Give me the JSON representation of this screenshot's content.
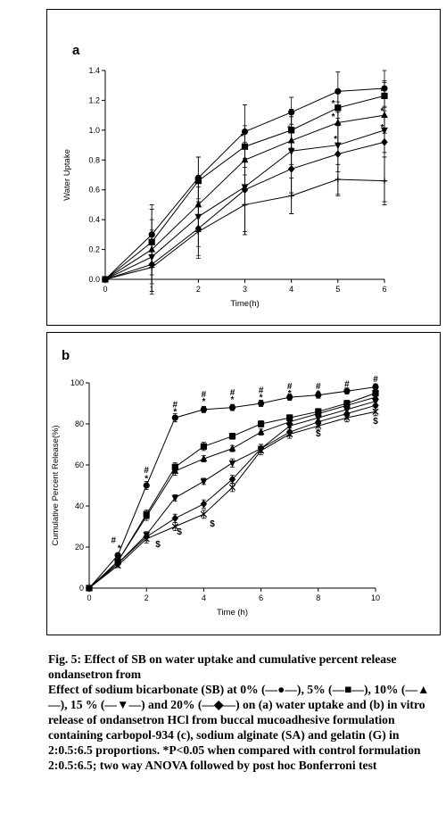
{
  "chart_data": [
    {
      "type": "line",
      "panel_label": "a",
      "xlabel": "Time(h)",
      "ylabel": "Water Uptake",
      "xlim": [
        0,
        6
      ],
      "ylim": [
        0,
        1.4
      ],
      "xticks": [
        "0",
        "1",
        "2",
        "3",
        "4",
        "5",
        "6"
      ],
      "yticks": [
        "0.0",
        "0.2",
        "0.4",
        "0.6",
        "0.8",
        "1.0",
        "1.2",
        "1.4"
      ],
      "grid": false,
      "x": [
        0,
        1,
        2,
        3,
        4,
        5,
        6
      ],
      "series": [
        {
          "marker": "circle",
          "values": [
            0,
            0.3,
            0.68,
            0.99,
            1.12,
            1.26,
            1.28
          ],
          "errors": [
            0,
            0.2,
            0.14,
            0.18,
            0.1,
            0.13,
            0.12
          ]
        },
        {
          "marker": "square",
          "values": [
            0,
            0.25,
            0.66,
            0.89,
            1.0,
            1.15,
            1.23
          ],
          "errors": [
            0,
            0.22,
            0.16,
            0.14,
            0.12,
            0.12,
            0.1
          ]
        },
        {
          "marker": "triangle-up",
          "values": [
            0,
            0.2,
            0.5,
            0.8,
            0.93,
            1.05,
            1.1
          ],
          "errors": [
            0,
            0.2,
            0.15,
            0.18,
            0.16,
            0.14,
            0.12
          ]
        },
        {
          "marker": "triangle-down",
          "values": [
            0,
            0.15,
            0.42,
            0.62,
            0.86,
            0.9,
            1.0
          ],
          "errors": [
            0,
            0.18,
            0.2,
            0.3,
            0.28,
            0.18,
            0.15
          ]
        },
        {
          "marker": "diamond",
          "values": [
            0,
            0.1,
            0.34,
            0.6,
            0.74,
            0.84,
            0.92
          ],
          "errors": [
            0,
            0.2,
            0.18,
            0.3,
            0.3,
            0.28,
            0.4
          ]
        },
        {
          "marker": "plus",
          "values": [
            0,
            0.08,
            0.32,
            0.5,
            0.56,
            0.67,
            0.66
          ],
          "errors": [
            0,
            0.16,
            0.18,
            0.2,
            0.12,
            0.1,
            0.16
          ]
        }
      ],
      "annotations": [
        {
          "text": "*",
          "x": 5.95,
          "y": 1.24
        },
        {
          "text": "*",
          "x": 5.95,
          "y": 1.11
        },
        {
          "text": "*",
          "x": 5.95,
          "y": 1.0
        },
        {
          "text": "*",
          "x": 4.9,
          "y": 1.16
        },
        {
          "text": "*",
          "x": 4.9,
          "y": 1.07
        },
        {
          "text": "*",
          "x": 4.95,
          "y": 0.92
        },
        {
          "text": "*",
          "x": 3.95,
          "y": 0.99
        },
        {
          "text": "*",
          "x": 2.95,
          "y": 0.94
        }
      ]
    },
    {
      "type": "line",
      "panel_label": "b",
      "xlabel": "Time (h)",
      "ylabel": "Cumulative Percent Release(%)",
      "xlim": [
        0,
        10
      ],
      "ylim": [
        0,
        100
      ],
      "xticks": [
        "0",
        "2",
        "4",
        "6",
        "8",
        "10"
      ],
      "yticks": [
        "0",
        "20",
        "40",
        "60",
        "80",
        "100"
      ],
      "grid": false,
      "x": [
        0,
        1,
        2,
        3,
        4,
        5,
        6,
        7,
        8,
        9,
        10
      ],
      "series": [
        {
          "marker": "circle",
          "values": [
            0,
            16,
            50,
            83,
            87,
            88,
            90,
            93,
            94,
            96,
            98
          ],
          "errors": [
            0,
            1,
            2,
            2,
            1.5,
            1.5,
            1.5,
            1.5,
            1.5,
            1.5,
            1.5
          ]
        },
        {
          "marker": "square",
          "values": [
            0,
            13,
            36,
            59,
            69,
            74,
            80,
            83,
            86,
            90,
            95
          ],
          "errors": [
            0,
            1,
            2,
            2,
            2,
            1.5,
            1.5,
            1.5,
            1.5,
            1.5,
            1.5
          ]
        },
        {
          "marker": "triangle-up",
          "values": [
            0,
            13,
            35,
            57,
            63,
            68,
            76,
            81,
            85,
            89,
            93
          ],
          "errors": [
            0,
            1,
            2,
            2,
            1.5,
            1.5,
            1.5,
            1.5,
            1.5,
            1.5,
            1.5
          ]
        },
        {
          "marker": "triangle-down",
          "values": [
            0,
            12,
            26,
            44,
            52,
            61,
            68,
            79,
            83,
            87,
            91
          ],
          "errors": [
            0,
            1,
            1.5,
            1.5,
            1.5,
            2,
            2,
            2,
            2,
            1.5,
            1.5
          ]
        },
        {
          "marker": "diamond",
          "values": [
            0,
            12,
            25,
            34,
            41,
            53,
            68,
            76,
            81,
            85,
            89
          ],
          "errors": [
            0,
            1,
            2,
            2,
            2,
            2,
            2,
            2,
            2,
            2,
            2
          ]
        },
        {
          "marker": "cross",
          "values": [
            0,
            11,
            24,
            30,
            36,
            49,
            67,
            75,
            79,
            83,
            86
          ],
          "errors": [
            0,
            1,
            2,
            2,
            2,
            2,
            2,
            2,
            2,
            2,
            2
          ]
        }
      ],
      "annotations": [
        {
          "text": "#",
          "x": 0.85,
          "y": 22
        },
        {
          "text": "*",
          "x": 1.05,
          "y": 18
        },
        {
          "text": "#",
          "x": 2.0,
          "y": 56
        },
        {
          "text": "*",
          "x": 2.0,
          "y": 52
        },
        {
          "text": "$",
          "x": 2.4,
          "y": 20
        },
        {
          "text": "#",
          "x": 3.0,
          "y": 88
        },
        {
          "text": "*",
          "x": 3.0,
          "y": 84.5
        },
        {
          "text": "$",
          "x": 3.15,
          "y": 26
        },
        {
          "text": "#",
          "x": 4.0,
          "y": 93
        },
        {
          "text": "*",
          "x": 4.0,
          "y": 89.5
        },
        {
          "text": "$",
          "x": 4.3,
          "y": 30
        },
        {
          "text": "#",
          "x": 5.0,
          "y": 94
        },
        {
          "text": "*",
          "x": 5.0,
          "y": 90.5
        },
        {
          "text": "#",
          "x": 6.0,
          "y": 95
        },
        {
          "text": "*",
          "x": 6.0,
          "y": 91.5
        },
        {
          "text": "#",
          "x": 7.0,
          "y": 97
        },
        {
          "text": "*",
          "x": 7.0,
          "y": 93.5
        },
        {
          "text": "#",
          "x": 8.0,
          "y": 97
        },
        {
          "text": "*",
          "x": 8.0,
          "y": 93.5
        },
        {
          "text": "$",
          "x": 8.0,
          "y": 74
        },
        {
          "text": "#",
          "x": 9.0,
          "y": 98
        },
        {
          "text": "*",
          "x": 9.0,
          "y": 94.5
        },
        {
          "text": "#",
          "x": 10.0,
          "y": 100.5
        },
        {
          "text": "*",
          "x": 10.0,
          "y": 97
        },
        {
          "text": "$",
          "x": 10.0,
          "y": 80
        }
      ]
    }
  ],
  "caption": {
    "title": "Fig. 5: Effect of SB on water uptake and cumulative percent release ondansetron from",
    "body": "Effect of sodium bicarbonate (SB) at 0% (—●—), 5% (—■—), 10% (—▲—), 15 % (—▼—) and 20% (—◆—) on (a) water uptake and (b) in vitro release of ondansetron HCl from buccal mucoadhesive formulation containing carbopol-934 (c), sodium alginate (SA) and gelatin (G) in 2:0.5:6.5 proportions. *P<0.05 when compared with control formulation 2:0.5:6.5; two way ANOVA followed by post hoc Bonferroni test"
  }
}
